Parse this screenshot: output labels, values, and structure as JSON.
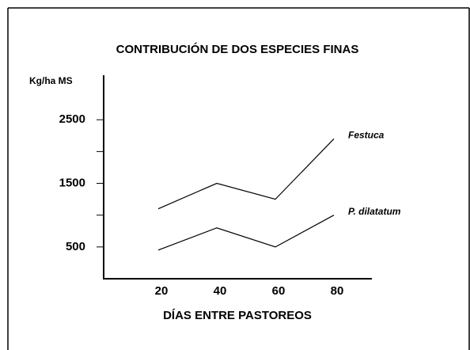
{
  "chart_data": {
    "type": "line",
    "title": "CONTRIBUCIÓN DE DOS ESPECIES FINAS",
    "y_label": "Kg/ha MS",
    "x_label": "DÍAS ENTRE PASTOREOS",
    "categories": [
      "20",
      "40",
      "60",
      "80"
    ],
    "series": [
      {
        "name": "Festuca",
        "color": "#000000",
        "values": [
          1100,
          1500,
          1250,
          2200
        ]
      },
      {
        "name": "P. dilatatum",
        "color": "#000000",
        "values": [
          450,
          800,
          500,
          1000
        ]
      }
    ],
    "ylim": [
      0,
      3200
    ],
    "yticks": [
      500,
      1500,
      2500
    ],
    "yminor_ticks": [
      1000,
      2000
    ],
    "grid": false
  }
}
